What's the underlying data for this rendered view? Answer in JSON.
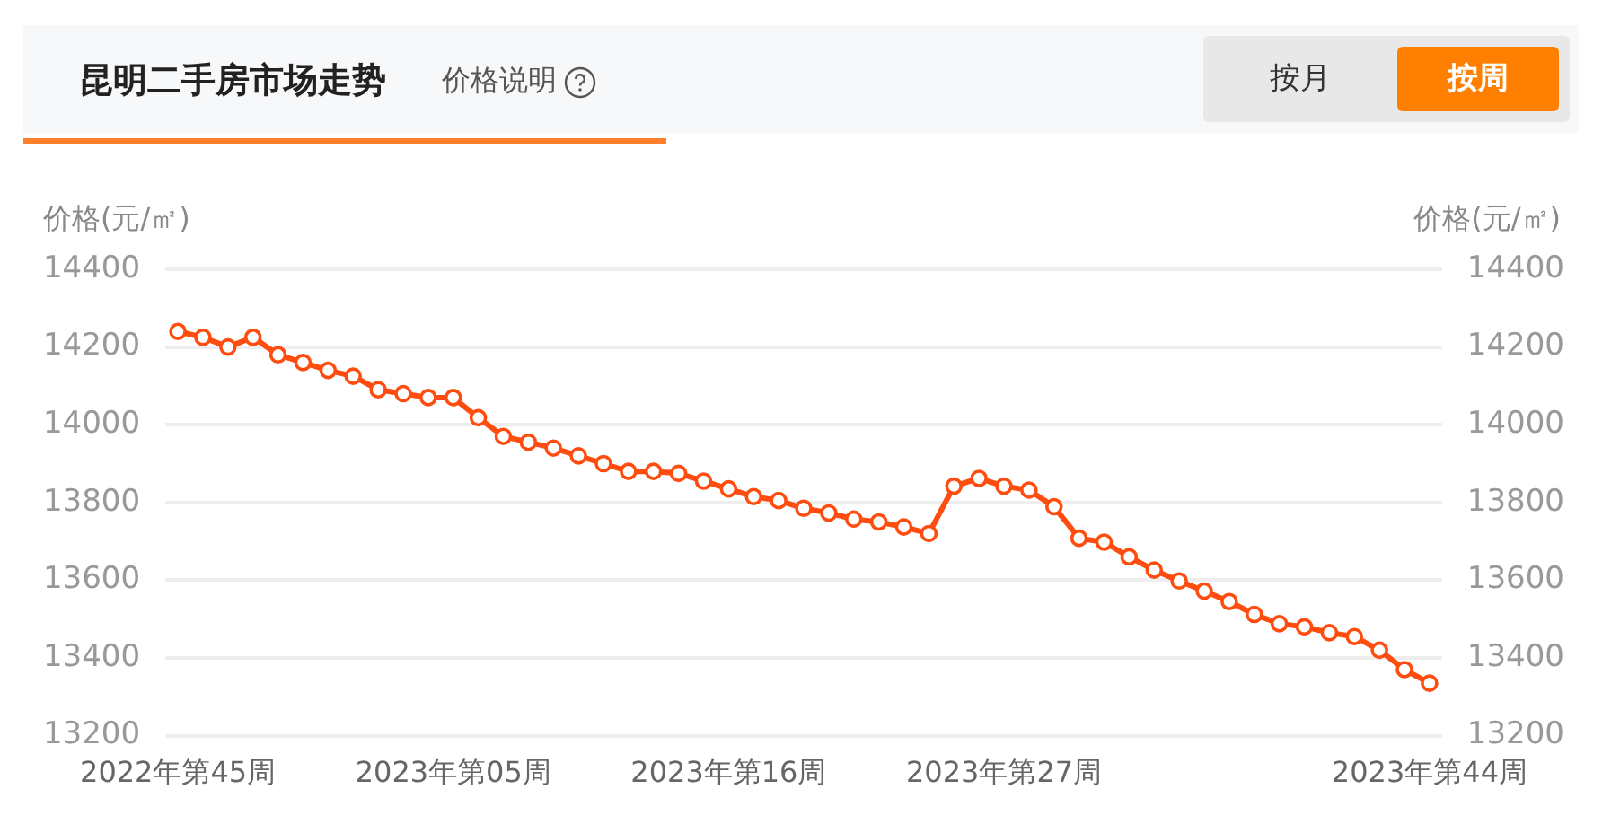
{
  "chart_data": {
    "type": "line",
    "title": "昆明二手房市场走势",
    "subtitle": "价格说明",
    "annotations": [
      "按月",
      "按周"
    ],
    "ylabel": "价格(元/㎡)",
    "y2label": "价格(元/㎡)",
    "categories": [
      "2022年第45周",
      null,
      null,
      null,
      null,
      null,
      null,
      null,
      null,
      null,
      null,
      "2023年第05周",
      null,
      null,
      null,
      null,
      null,
      null,
      null,
      null,
      null,
      null,
      "2023年第16周",
      null,
      null,
      null,
      null,
      null,
      null,
      null,
      null,
      null,
      null,
      "2023年第27周",
      null,
      null,
      null,
      null,
      null,
      null,
      null,
      null,
      null,
      null,
      null,
      null,
      null,
      null,
      null,
      null,
      "2023年第44周"
    ],
    "series": [
      {
        "color": "#ff4d0f",
        "values": [
          14240,
          14225,
          14200,
          14225,
          14180,
          14160,
          14140,
          14125,
          14090,
          14080,
          14070,
          14070,
          14018,
          13970,
          13955,
          13940,
          13920,
          13900,
          13880,
          13880,
          13875,
          13855,
          13835,
          13815,
          13805,
          13785,
          13773,
          13757,
          13750,
          13737,
          13720,
          13842,
          13862,
          13842,
          13832,
          13789,
          13708,
          13698,
          13660,
          13626,
          13598,
          13572,
          13545,
          13512,
          13488,
          13480,
          13465,
          13455,
          13420,
          13370,
          13335
        ]
      }
    ],
    "ylim": [
      13200,
      14400
    ],
    "yticks": [
      13200,
      13400,
      13600,
      13800,
      14000,
      14200,
      14400
    ],
    "y2lim": [
      13200,
      14400
    ],
    "y2ticks": [
      13200,
      13400,
      13600,
      13800,
      14000,
      14200,
      14400
    ],
    "grid": "y",
    "marker": "circle",
    "line_style": "solid"
  }
}
